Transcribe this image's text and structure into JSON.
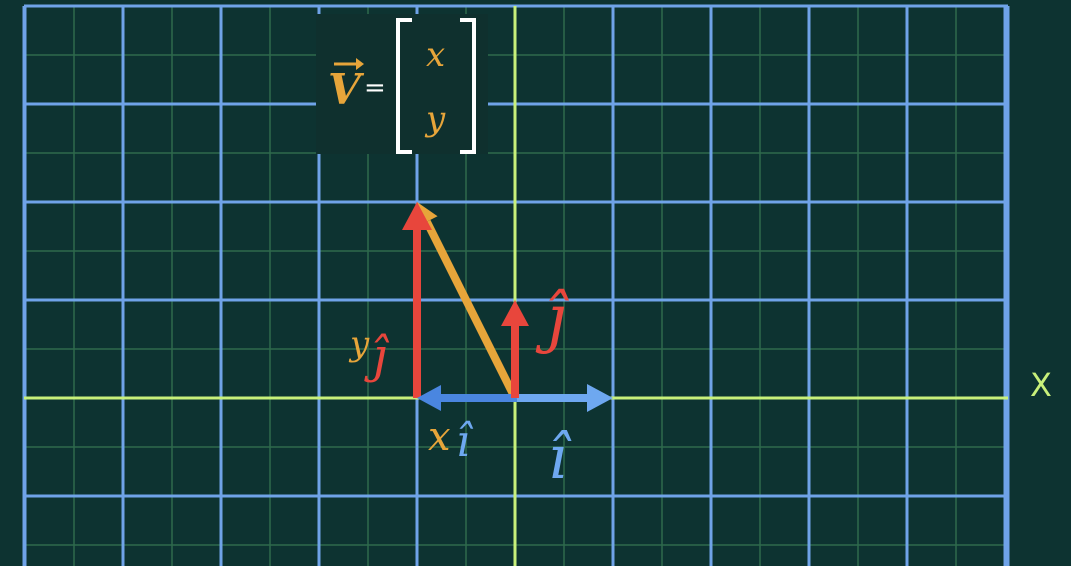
{
  "colors": {
    "background": "#0d3331",
    "major_grid": "#6fa3e8",
    "minor_grid": "#2f6a4c",
    "axis": "#c8f07a",
    "basis_j": "#e8463c",
    "basis_i": "#6ea8f0",
    "vector_v": "#e7a53a",
    "matrix_box": "#0f302e",
    "bracket": "#ffffff"
  },
  "axis": {
    "x_label": "X"
  },
  "vectors": {
    "v": {
      "name": "v",
      "x": -1,
      "y": 2
    },
    "i_hat": {
      "x": 1,
      "y": 0
    },
    "j_hat": {
      "x": 0,
      "y": 1
    },
    "x_i_hat": {
      "x": -1,
      "y": 0
    },
    "y_j_hat": {
      "x": 0,
      "y": 2
    }
  },
  "matrix": {
    "symbol": "V",
    "equals": "=",
    "top": "x",
    "bottom": "y"
  },
  "labels": {
    "i_hat": "î",
    "j_hat": "ĵ",
    "x_coef": "x",
    "y_coef": "y"
  }
}
